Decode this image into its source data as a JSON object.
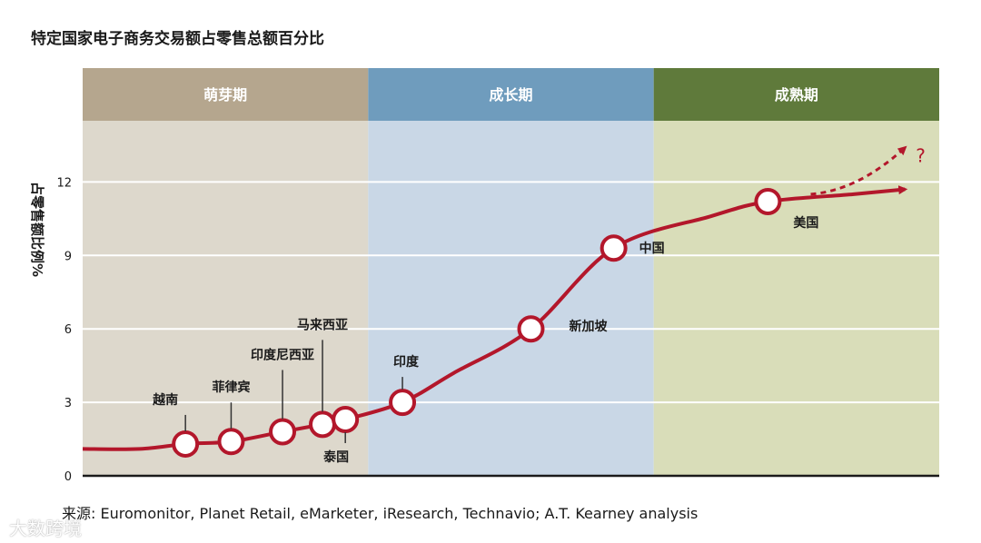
{
  "title": "特定国家电子商务交易额占零售总额百分比",
  "source": "来源: Euromonitor, Planet Retail, eMarketer, iResearch, Technavio; A.T. Kearney analysis",
  "watermark": "大数跨境",
  "colors": {
    "curve": "#b3172b",
    "phase1_band": "#b5a68e",
    "phase1_bg": "#ddd8cc",
    "phase2_band": "#6f9cbd",
    "phase2_bg": "#c9d7e6",
    "phase3_band": "#5f7a3b",
    "phase3_bg": "#d9ddb9"
  },
  "chart_data": {
    "type": "line",
    "title": "特定国家电子商务交易额占零售总额百分比",
    "ylabel": "占零售额比例%",
    "xlabel": "",
    "ylim": [
      0,
      14.5
    ],
    "yticks": [
      "0",
      "3",
      "6",
      "9",
      "12"
    ],
    "phases": [
      {
        "name": "萌芽期",
        "x_start": 0,
        "x_end": 10
      },
      {
        "name": "成长期",
        "x_start": 10,
        "x_end": 20
      },
      {
        "name": "成熟期",
        "x_start": 20,
        "x_end": 30
      }
    ],
    "curve": [
      {
        "x": 0,
        "y": 1.1
      },
      {
        "x": 2,
        "y": 1.1
      },
      {
        "x": 3.6,
        "y": 1.3
      },
      {
        "x": 5.2,
        "y": 1.4
      },
      {
        "x": 7.0,
        "y": 1.8
      },
      {
        "x": 8.4,
        "y": 2.1
      },
      {
        "x": 9.2,
        "y": 2.3
      },
      {
        "x": 11.2,
        "y": 3.0
      },
      {
        "x": 13.0,
        "y": 4.2
      },
      {
        "x": 15.7,
        "y": 6.0
      },
      {
        "x": 18.6,
        "y": 9.3
      },
      {
        "x": 22,
        "y": 10.6
      },
      {
        "x": 24,
        "y": 11.2
      },
      {
        "x": 27,
        "y": 11.5
      },
      {
        "x": 28.8,
        "y": 11.7
      }
    ],
    "points": [
      {
        "name": "越南",
        "x": 3.6,
        "y": 1.3,
        "label_pos": "above"
      },
      {
        "name": "菲律宾",
        "x": 5.2,
        "y": 1.4,
        "label_pos": "above"
      },
      {
        "name": "印度尼西亚",
        "x": 7.0,
        "y": 1.8,
        "label_pos": "above"
      },
      {
        "name": "马来西亚",
        "x": 8.4,
        "y": 2.1,
        "label_pos": "above"
      },
      {
        "name": "泰国",
        "x": 9.2,
        "y": 2.3,
        "label_pos": "below"
      },
      {
        "name": "印度",
        "x": 11.2,
        "y": 3.0,
        "label_pos": "above"
      },
      {
        "name": "新加坡",
        "x": 15.7,
        "y": 6.0,
        "label_pos": "right"
      },
      {
        "name": "中国",
        "x": 18.6,
        "y": 9.3,
        "label_pos": "right"
      },
      {
        "name": "美国",
        "x": 24,
        "y": 11.2,
        "label_pos": "right"
      }
    ],
    "projection": {
      "label": "?",
      "from": {
        "x": 25.5,
        "y": 11.5
      },
      "to": {
        "x": 28.8,
        "y": 13.4
      }
    }
  }
}
